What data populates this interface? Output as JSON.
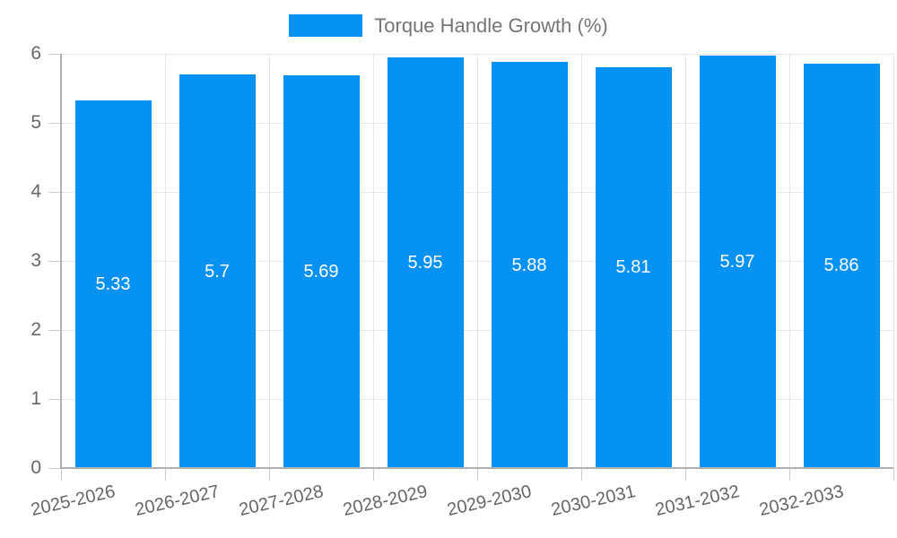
{
  "chart_data": {
    "type": "bar",
    "title": "Torque Handle Growth (%)",
    "legend_position": "top",
    "legend_entries": [
      "Torque Handle Growth (%)"
    ],
    "categories": [
      "2025-2026",
      "2026-2027",
      "2027-2028",
      "2028-2029",
      "2029-2030",
      "2030-2031",
      "2031-2032",
      "2032-2033"
    ],
    "values": [
      5.33,
      5.7,
      5.69,
      5.95,
      5.88,
      5.81,
      5.97,
      5.86
    ],
    "value_labels": [
      "5.33",
      "5.7",
      "5.69",
      "5.95",
      "5.88",
      "5.81",
      "5.97",
      "5.86"
    ],
    "xlabel": "",
    "ylabel": "",
    "ylim": [
      0,
      6
    ],
    "yticks": [
      0,
      1,
      2,
      3,
      4,
      5,
      6
    ],
    "grid": true,
    "bar_color": "#0691f5",
    "value_label_color": "#ffffff"
  },
  "colors": {
    "background": "#ffffff",
    "gridline": "#e6e6e6",
    "axis": "#b0b0b0",
    "tick": "#cccccc",
    "axis_text": "#666666",
    "legend_text": "#757575"
  }
}
